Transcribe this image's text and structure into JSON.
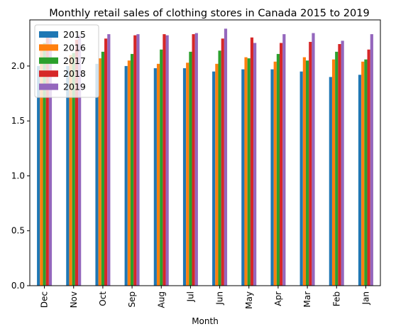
{
  "chart_data": {
    "type": "bar",
    "title": "Monthly retail sales of clothing stores in Canada 2015 to 2019",
    "xlabel": "Month",
    "ylabel": "",
    "categories": [
      "Dec",
      "Nov",
      "Oct",
      "Sep",
      "Aug",
      "Jul",
      "Jun",
      "May",
      "Apr",
      "Mar",
      "Feb",
      "Jan"
    ],
    "ylim": [
      0,
      2.42
    ],
    "yticks": [
      "0.0",
      "0.5",
      "1.0",
      "1.5",
      "2.0"
    ],
    "grid": false,
    "legend_position": "top-left",
    "series": [
      {
        "name": "2015",
        "color": "#1f77b4",
        "values": [
          2.0,
          2.0,
          2.02,
          2.0,
          1.98,
          1.98,
          1.95,
          1.97,
          1.97,
          1.95,
          1.9,
          1.92
        ]
      },
      {
        "name": "2016",
        "color": "#ff7f0e",
        "values": [
          2.2,
          2.1,
          2.07,
          2.05,
          2.02,
          2.03,
          2.02,
          2.08,
          2.04,
          2.08,
          2.06,
          2.04
        ]
      },
      {
        "name": "2017",
        "color": "#2ca02c",
        "values": [
          2.21,
          2.12,
          2.13,
          2.11,
          2.15,
          2.13,
          2.14,
          2.07,
          2.11,
          2.05,
          2.13,
          2.06
        ]
      },
      {
        "name": "2018",
        "color": "#d62728",
        "values": [
          2.26,
          2.24,
          2.25,
          2.28,
          2.29,
          2.29,
          2.25,
          2.26,
          2.21,
          2.22,
          2.2,
          2.15
        ]
      },
      {
        "name": "2019",
        "color": "#9467bd",
        "values": [
          2.3,
          2.28,
          2.29,
          2.29,
          2.28,
          2.3,
          2.34,
          2.21,
          2.29,
          2.3,
          2.23,
          2.29
        ]
      }
    ]
  }
}
